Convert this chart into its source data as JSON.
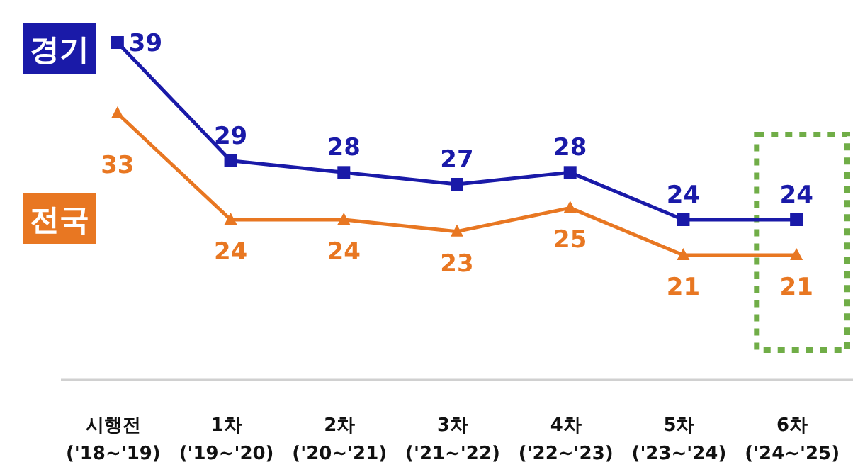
{
  "chart_data": {
    "type": "line",
    "categories": [
      "시행전\n('18~'19)",
      "1차\n('19~'20)",
      "2차\n('20~'21)",
      "3차\n('21~'22)",
      "4차\n('22~'23)",
      "5차\n('23~'24)",
      "6차\n('24~'25)"
    ],
    "series": [
      {
        "name": "경기",
        "color": "#1a1aa8",
        "marker": "square",
        "values": [
          39,
          29,
          28,
          27,
          28,
          24,
          24
        ]
      },
      {
        "name": "전국",
        "color": "#e87722",
        "marker": "triangle",
        "values": [
          33,
          24,
          24,
          23,
          25,
          21,
          21
        ]
      }
    ],
    "data_labels": true,
    "line_style": "solid"
  }
}
